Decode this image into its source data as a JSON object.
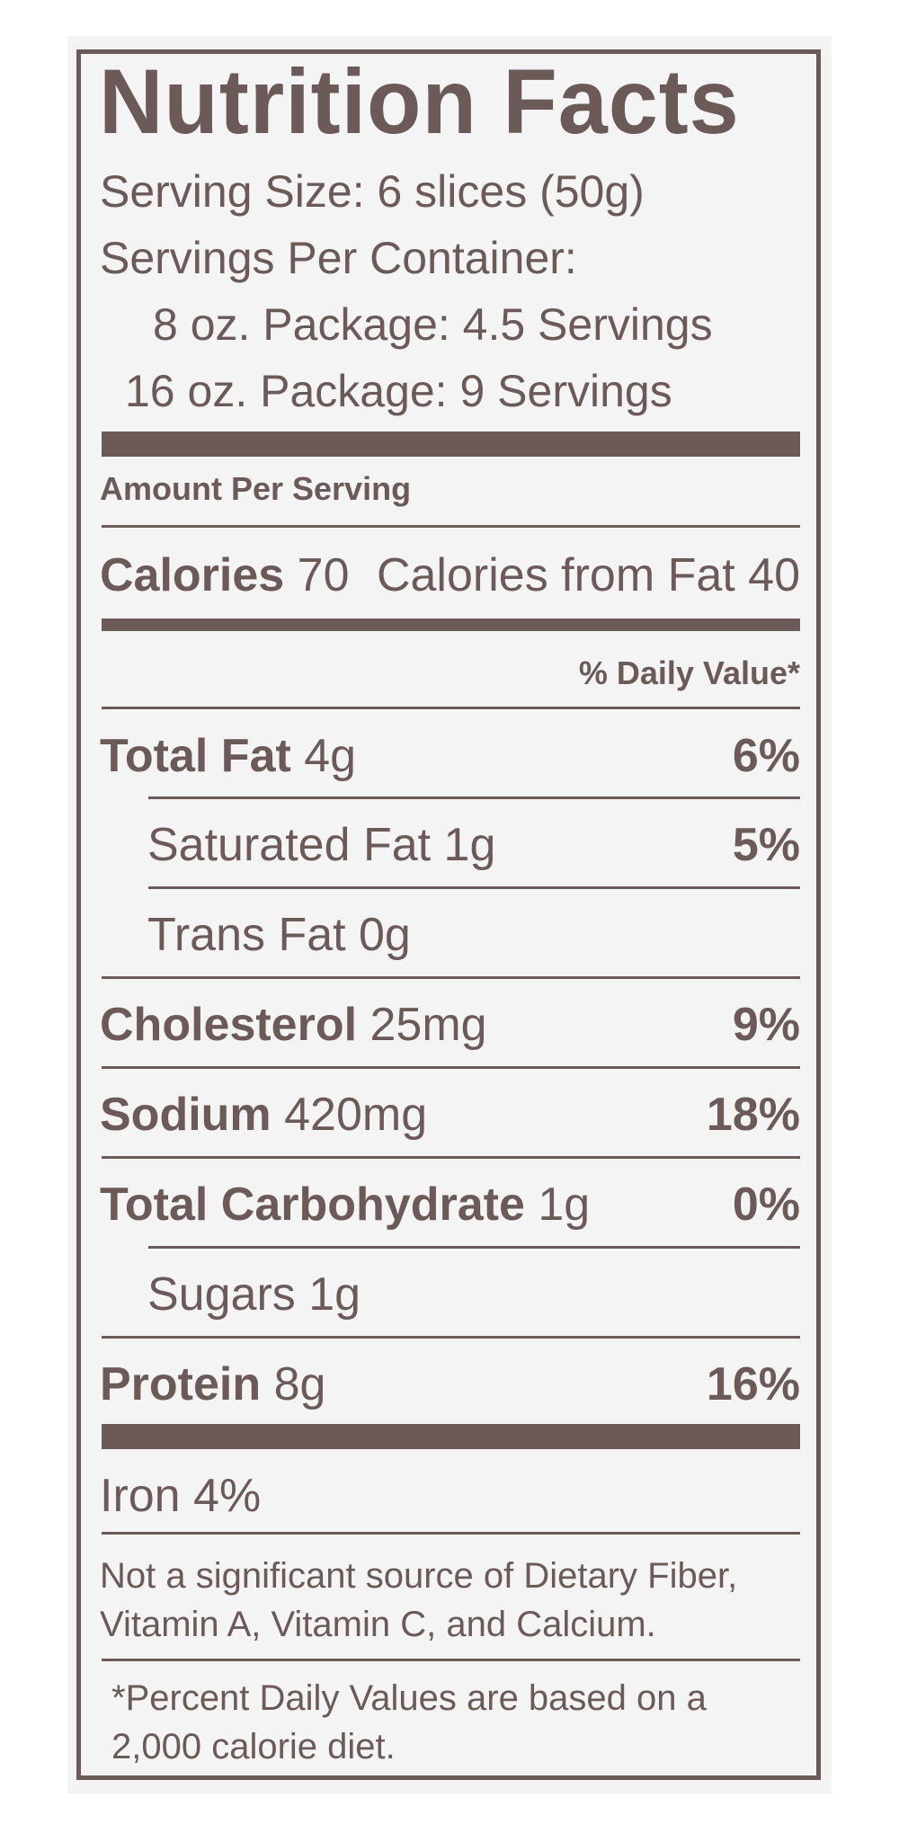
{
  "title": "Nutrition Facts",
  "serving_size": "Serving Size: 6 slices (50g)",
  "servings_per_container": "Servings Per Container:",
  "package_8oz": "8 oz. Package: 4.5 Servings",
  "package_16oz": "16 oz. Package: 9 Servings",
  "amount_per_serving": "Amount Per Serving",
  "calories_label": "Calories",
  "calories_value": "70",
  "calories_from_fat": "Calories from Fat 40",
  "daily_value_header": "% Daily Value*",
  "nutrients": {
    "total_fat": {
      "label": "Total Fat",
      "amount": "4g",
      "dv": "6%"
    },
    "saturated_fat": {
      "label": "Saturated Fat 1g",
      "dv": "5%"
    },
    "trans_fat": {
      "label": "Trans Fat 0g"
    },
    "cholesterol": {
      "label": "Cholesterol",
      "amount": "25mg",
      "dv": "9%"
    },
    "sodium": {
      "label": "Sodium",
      "amount": "420mg",
      "dv": "18%"
    },
    "total_carbohydrate": {
      "label": "Total Carbohydrate",
      "amount": "1g",
      "dv": "0%"
    },
    "sugars": {
      "label": "Sugars 1g"
    },
    "protein": {
      "label": "Protein",
      "amount": "8g",
      "dv": "16%"
    }
  },
  "iron": "Iron 4%",
  "not_significant_line1": "Not a significant source of Dietary Fiber,",
  "not_significant_line2": "Vitamin A, Vitamin C, and Calcium.",
  "footnote_line1": "*Percent Daily Values are based on a",
  "footnote_line2": "2,000 calorie diet.",
  "colors": {
    "ink": "#6b5a58",
    "background": "#f5f4f4"
  }
}
